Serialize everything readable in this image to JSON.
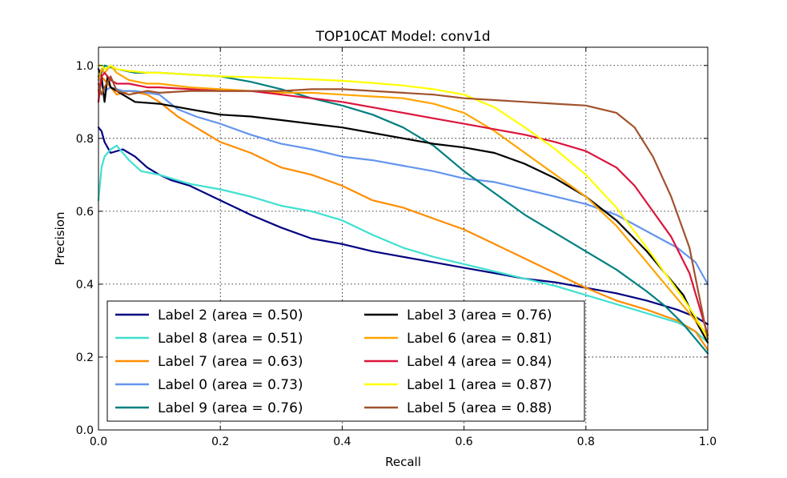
{
  "chart_data": {
    "type": "line",
    "title": "TOP10CAT Model: conv1d",
    "xlabel": "Recall",
    "ylabel": "Precision",
    "xlim": [
      0.0,
      1.0
    ],
    "ylim": [
      0.0,
      1.05
    ],
    "xticks": [
      "0.0",
      "0.2",
      "0.4",
      "0.6",
      "0.8",
      "1.0"
    ],
    "yticks": [
      "0.0",
      "0.2",
      "0.4",
      "0.6",
      "0.8",
      "1.0"
    ],
    "grid": true,
    "legend_position": "lower-left",
    "legend_columns": 2,
    "series": [
      {
        "name": "Label 2 (area = 0.50)",
        "color": "#000080",
        "x": [
          0.0,
          0.005,
          0.01,
          0.02,
          0.04,
          0.06,
          0.08,
          0.1,
          0.12,
          0.15,
          0.2,
          0.25,
          0.3,
          0.35,
          0.4,
          0.45,
          0.5,
          0.55,
          0.6,
          0.65,
          0.7,
          0.75,
          0.8,
          0.85,
          0.9,
          0.95,
          0.98,
          1.0
        ],
        "y": [
          0.83,
          0.82,
          0.79,
          0.76,
          0.77,
          0.75,
          0.72,
          0.7,
          0.685,
          0.67,
          0.63,
          0.59,
          0.555,
          0.525,
          0.51,
          0.49,
          0.475,
          0.46,
          0.445,
          0.43,
          0.415,
          0.405,
          0.39,
          0.375,
          0.355,
          0.33,
          0.31,
          0.29
        ]
      },
      {
        "name": "Label 8 (area = 0.51)",
        "color": "#40e0d0",
        "x": [
          0.0,
          0.005,
          0.01,
          0.02,
          0.03,
          0.05,
          0.07,
          0.1,
          0.12,
          0.15,
          0.2,
          0.25,
          0.3,
          0.35,
          0.4,
          0.45,
          0.5,
          0.55,
          0.6,
          0.65,
          0.7,
          0.75,
          0.8,
          0.85,
          0.9,
          0.95,
          0.98,
          1.0
        ],
        "y": [
          0.63,
          0.72,
          0.75,
          0.77,
          0.78,
          0.74,
          0.71,
          0.7,
          0.69,
          0.675,
          0.66,
          0.64,
          0.615,
          0.6,
          0.575,
          0.535,
          0.5,
          0.475,
          0.455,
          0.435,
          0.415,
          0.395,
          0.37,
          0.345,
          0.32,
          0.295,
          0.27,
          0.24
        ]
      },
      {
        "name": "Label 7 (area = 0.63)",
        "color": "#ff8c00",
        "x": [
          0.0,
          0.005,
          0.01,
          0.02,
          0.03,
          0.05,
          0.08,
          0.1,
          0.13,
          0.16,
          0.2,
          0.25,
          0.3,
          0.35,
          0.4,
          0.45,
          0.5,
          0.55,
          0.6,
          0.65,
          0.7,
          0.75,
          0.8,
          0.85,
          0.9,
          0.95,
          0.98,
          1.0
        ],
        "y": [
          0.93,
          0.97,
          0.96,
          0.94,
          0.92,
          0.93,
          0.92,
          0.9,
          0.86,
          0.83,
          0.79,
          0.76,
          0.72,
          0.7,
          0.67,
          0.63,
          0.61,
          0.58,
          0.55,
          0.51,
          0.47,
          0.43,
          0.39,
          0.355,
          0.33,
          0.3,
          0.27,
          0.22
        ]
      },
      {
        "name": "Label 0 (area = 0.73)",
        "color": "#6495ed",
        "x": [
          0.0,
          0.005,
          0.01,
          0.02,
          0.04,
          0.06,
          0.1,
          0.13,
          0.16,
          0.2,
          0.25,
          0.3,
          0.35,
          0.4,
          0.45,
          0.5,
          0.55,
          0.6,
          0.65,
          0.7,
          0.75,
          0.8,
          0.85,
          0.9,
          0.95,
          0.98,
          1.0
        ],
        "y": [
          0.97,
          0.95,
          0.93,
          0.94,
          0.93,
          0.93,
          0.92,
          0.88,
          0.86,
          0.84,
          0.81,
          0.785,
          0.77,
          0.75,
          0.74,
          0.725,
          0.71,
          0.69,
          0.68,
          0.66,
          0.64,
          0.62,
          0.59,
          0.545,
          0.5,
          0.46,
          0.4
        ]
      },
      {
        "name": "Label 9 (area = 0.76)",
        "color": "#008080",
        "x": [
          0.0,
          0.005,
          0.01,
          0.03,
          0.06,
          0.1,
          0.15,
          0.2,
          0.25,
          0.3,
          0.35,
          0.4,
          0.45,
          0.5,
          0.55,
          0.6,
          0.65,
          0.7,
          0.75,
          0.8,
          0.85,
          0.9,
          0.93,
          0.96,
          0.98,
          1.0
        ],
        "y": [
          0.97,
          0.98,
          1.0,
          0.99,
          0.98,
          0.98,
          0.975,
          0.97,
          0.955,
          0.935,
          0.91,
          0.89,
          0.865,
          0.83,
          0.78,
          0.71,
          0.65,
          0.59,
          0.54,
          0.49,
          0.44,
          0.38,
          0.34,
          0.29,
          0.25,
          0.21
        ]
      },
      {
        "name": "Label 3 (area = 0.76)",
        "color": "#000000",
        "x": [
          0.0,
          0.005,
          0.01,
          0.015,
          0.02,
          0.04,
          0.06,
          0.1,
          0.15,
          0.2,
          0.25,
          0.3,
          0.35,
          0.4,
          0.45,
          0.5,
          0.55,
          0.6,
          0.65,
          0.7,
          0.75,
          0.8,
          0.85,
          0.9,
          0.93,
          0.96,
          0.98,
          1.0
        ],
        "y": [
          0.99,
          0.97,
          0.9,
          0.97,
          0.94,
          0.92,
          0.9,
          0.895,
          0.88,
          0.865,
          0.86,
          0.85,
          0.84,
          0.83,
          0.815,
          0.8,
          0.785,
          0.775,
          0.76,
          0.73,
          0.69,
          0.64,
          0.575,
          0.49,
          0.43,
          0.37,
          0.3,
          0.24
        ]
      },
      {
        "name": "Label 6 (area = 0.81)",
        "color": "#ffa500",
        "x": [
          0.0,
          0.005,
          0.01,
          0.02,
          0.03,
          0.05,
          0.08,
          0.1,
          0.15,
          0.2,
          0.25,
          0.3,
          0.35,
          0.4,
          0.45,
          0.5,
          0.55,
          0.6,
          0.65,
          0.7,
          0.75,
          0.8,
          0.85,
          0.9,
          0.93,
          0.96,
          0.98,
          1.0
        ],
        "y": [
          0.96,
          0.99,
          0.98,
          1.0,
          0.98,
          0.96,
          0.95,
          0.95,
          0.94,
          0.935,
          0.93,
          0.925,
          0.925,
          0.92,
          0.915,
          0.91,
          0.895,
          0.87,
          0.82,
          0.76,
          0.7,
          0.64,
          0.56,
          0.46,
          0.4,
          0.34,
          0.3,
          0.26
        ]
      },
      {
        "name": "Label 4 (area = 0.84)",
        "color": "#dc143c",
        "x": [
          0.0,
          0.005,
          0.01,
          0.02,
          0.03,
          0.05,
          0.08,
          0.1,
          0.15,
          0.2,
          0.25,
          0.3,
          0.35,
          0.4,
          0.45,
          0.5,
          0.55,
          0.6,
          0.65,
          0.7,
          0.75,
          0.8,
          0.85,
          0.88,
          0.91,
          0.94,
          0.97,
          1.0
        ],
        "y": [
          0.9,
          0.97,
          0.98,
          0.96,
          0.95,
          0.95,
          0.94,
          0.94,
          0.935,
          0.93,
          0.93,
          0.92,
          0.91,
          0.9,
          0.885,
          0.87,
          0.855,
          0.84,
          0.825,
          0.81,
          0.79,
          0.765,
          0.72,
          0.67,
          0.6,
          0.53,
          0.43,
          0.26
        ]
      },
      {
        "name": "Label 1 (area = 0.87)",
        "color": "#ffff00",
        "x": [
          0.0,
          0.005,
          0.01,
          0.02,
          0.03,
          0.05,
          0.08,
          0.1,
          0.15,
          0.2,
          0.25,
          0.3,
          0.35,
          0.4,
          0.45,
          0.5,
          0.55,
          0.6,
          0.65,
          0.7,
          0.75,
          0.8,
          0.85,
          0.9,
          0.93,
          0.96,
          0.98,
          1.0
        ],
        "y": [
          1.0,
          1.0,
          0.99,
          1.0,
          0.99,
          0.985,
          0.98,
          0.98,
          0.975,
          0.97,
          0.968,
          0.965,
          0.962,
          0.958,
          0.952,
          0.945,
          0.935,
          0.92,
          0.885,
          0.83,
          0.77,
          0.7,
          0.61,
          0.5,
          0.43,
          0.36,
          0.31,
          0.25
        ]
      },
      {
        "name": "Label 5 (area = 0.88)",
        "color": "#a0522d",
        "x": [
          0.0,
          0.005,
          0.01,
          0.02,
          0.03,
          0.05,
          0.08,
          0.1,
          0.15,
          0.2,
          0.25,
          0.3,
          0.35,
          0.4,
          0.45,
          0.5,
          0.55,
          0.6,
          0.65,
          0.7,
          0.75,
          0.8,
          0.85,
          0.88,
          0.91,
          0.94,
          0.97,
          1.0
        ],
        "y": [
          0.95,
          0.92,
          0.94,
          0.97,
          0.93,
          0.92,
          0.93,
          0.925,
          0.93,
          0.93,
          0.93,
          0.93,
          0.935,
          0.935,
          0.93,
          0.925,
          0.92,
          0.91,
          0.905,
          0.9,
          0.895,
          0.89,
          0.87,
          0.83,
          0.75,
          0.64,
          0.5,
          0.25
        ]
      }
    ]
  }
}
